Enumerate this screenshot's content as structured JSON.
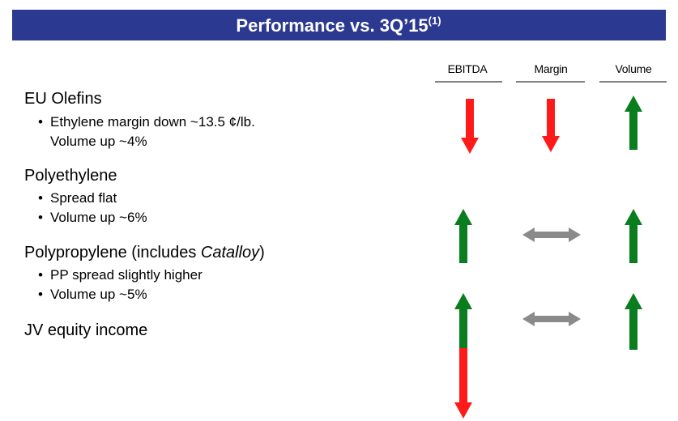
{
  "header": {
    "title": "Performance vs. 3Q’15",
    "footnote_mark": "(1)"
  },
  "columns": [
    "EBITDA",
    "Margin",
    "Volume"
  ],
  "sections": [
    {
      "title": "EU Olefins",
      "bullets": [
        "Ethylene margin down ~13.5 ¢/lb.",
        "Volume up ~4%"
      ]
    },
    {
      "title": "Polyethylene",
      "bullets": [
        "Spread flat",
        "Volume up ~6%"
      ]
    },
    {
      "title_before": "Polypropylene (includes ",
      "title_italic": "Catalloy",
      "title_after": ")",
      "bullets": [
        "PP spread slightly higher",
        "Volume up ~5%"
      ]
    },
    {
      "title": "JV equity income",
      "bullets": []
    }
  ]
}
